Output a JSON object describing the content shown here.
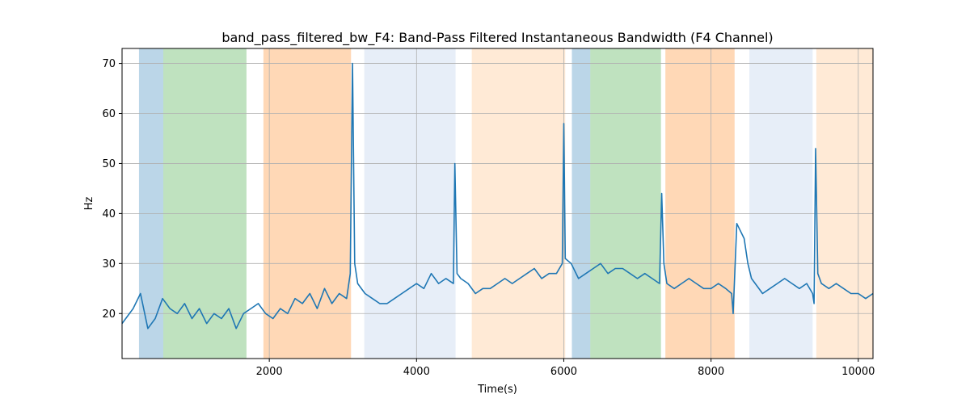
{
  "chart_data": {
    "type": "line",
    "title": "band_pass_filtered_bw_F4: Band-Pass Filtered Instantaneous Bandwidth (F4 Channel)",
    "xlabel": "Time(s)",
    "ylabel": "Hz",
    "xlim": [
      0,
      10200
    ],
    "ylim": [
      11,
      73
    ],
    "xticks": [
      2000,
      4000,
      6000,
      8000,
      10000
    ],
    "yticks": [
      20,
      30,
      40,
      50,
      60,
      70
    ],
    "grid": true,
    "series_color": "#1f77b4",
    "bands": [
      {
        "x0": 230,
        "x1": 560,
        "color": "#1f77b4",
        "opacity": 0.3
      },
      {
        "x0": 560,
        "x1": 1690,
        "color": "#2ca02c",
        "opacity": 0.3
      },
      {
        "x0": 1920,
        "x1": 3110,
        "color": "#ff7f0e",
        "opacity": 0.3
      },
      {
        "x0": 3290,
        "x1": 4530,
        "color": "#aec7e8",
        "opacity": 0.3
      },
      {
        "x0": 4750,
        "x1": 6020,
        "color": "#ffbb78",
        "opacity": 0.3
      },
      {
        "x0": 6110,
        "x1": 6360,
        "color": "#1f77b4",
        "opacity": 0.3
      },
      {
        "x0": 6360,
        "x1": 7320,
        "color": "#2ca02c",
        "opacity": 0.3
      },
      {
        "x0": 7380,
        "x1": 8320,
        "color": "#ff7f0e",
        "opacity": 0.3
      },
      {
        "x0": 8520,
        "x1": 9380,
        "color": "#aec7e8",
        "opacity": 0.3
      },
      {
        "x0": 9430,
        "x1": 10200,
        "color": "#ffbb78",
        "opacity": 0.3
      }
    ],
    "series": [
      {
        "x": [
          0,
          150,
          250,
          350,
          450,
          550,
          650,
          750,
          850,
          950,
          1050,
          1150,
          1250,
          1350,
          1450,
          1550,
          1650,
          1750,
          1850,
          1950,
          2050,
          2150,
          2250,
          2350,
          2450,
          2550,
          2650,
          2750,
          2850,
          2950,
          3050,
          3100,
          3130,
          3160,
          3200,
          3300,
          3400,
          3500,
          3600,
          3700,
          3800,
          3900,
          4000,
          4100,
          4200,
          4300,
          4400,
          4500,
          4520,
          4550,
          4600,
          4700,
          4800,
          4900,
          5000,
          5100,
          5200,
          5300,
          5400,
          5500,
          5600,
          5700,
          5800,
          5900,
          5980,
          6000,
          6020,
          6100,
          6200,
          6300,
          6400,
          6500,
          6600,
          6700,
          6800,
          6900,
          7000,
          7100,
          7200,
          7300,
          7330,
          7360,
          7400,
          7500,
          7600,
          7700,
          7800,
          7900,
          8000,
          8100,
          8200,
          8280,
          8300,
          8350,
          8450,
          8500,
          8550,
          8600,
          8700,
          8800,
          8900,
          9000,
          9100,
          9200,
          9300,
          9380,
          9400,
          9420,
          9450,
          9500,
          9600,
          9700,
          9800,
          9900,
          10000,
          10100,
          10200
        ],
        "y": [
          18,
          21,
          24,
          17,
          19,
          23,
          21,
          20,
          22,
          19,
          21,
          18,
          20,
          19,
          21,
          17,
          20,
          21,
          22,
          20,
          19,
          21,
          20,
          23,
          22,
          24,
          21,
          25,
          22,
          24,
          23,
          28,
          70,
          30,
          26,
          24,
          23,
          22,
          22,
          23,
          24,
          25,
          26,
          25,
          28,
          26,
          27,
          26,
          50,
          28,
          27,
          26,
          24,
          25,
          25,
          26,
          27,
          26,
          27,
          28,
          29,
          27,
          28,
          28,
          30,
          58,
          31,
          30,
          27,
          28,
          29,
          30,
          28,
          29,
          29,
          28,
          27,
          28,
          27,
          26,
          44,
          30,
          26,
          25,
          26,
          27,
          26,
          25,
          25,
          26,
          25,
          24,
          20,
          38,
          35,
          30,
          27,
          26,
          24,
          25,
          26,
          27,
          26,
          25,
          26,
          24,
          22,
          53,
          28,
          26,
          25,
          26,
          25,
          24,
          24,
          23,
          24
        ]
      }
    ]
  }
}
